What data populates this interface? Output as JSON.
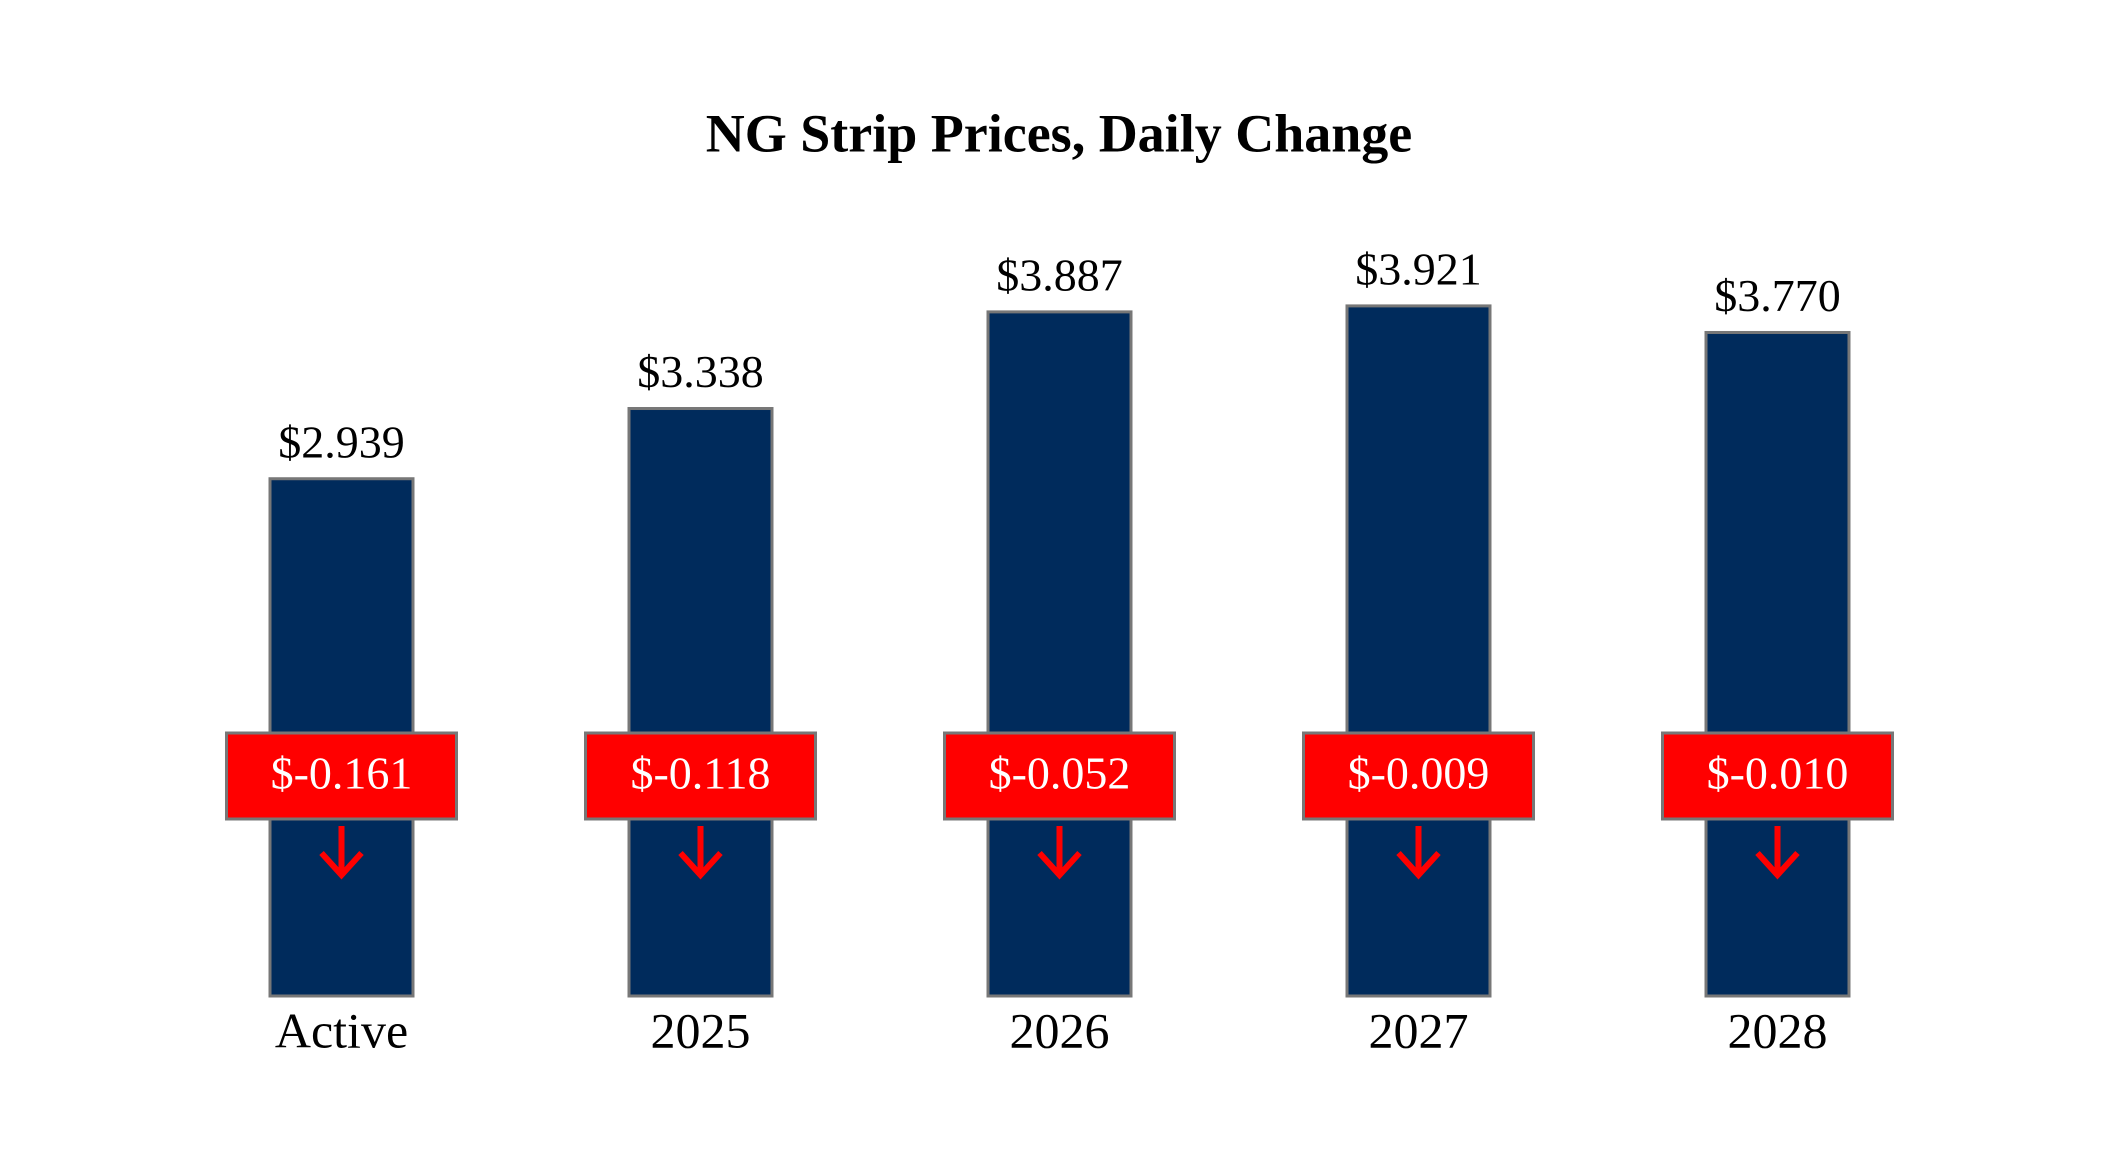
{
  "chart_data": {
    "type": "bar",
    "title": "NG Strip Prices, Daily Change",
    "categories": [
      "Active",
      "2025",
      "2026",
      "2027",
      "2028"
    ],
    "values": [
      2.939,
      3.338,
      3.887,
      3.921,
      3.77
    ],
    "value_labels": [
      "$2.939",
      "$3.338",
      "$3.887",
      "$3.921",
      "$3.770"
    ],
    "color": "#002b5c",
    "changes": {
      "values": [
        -0.161,
        -0.118,
        -0.052,
        -0.009,
        -0.01
      ],
      "value_labels": [
        "$-0.161",
        "$-0.118",
        "$-0.052",
        "$-0.009",
        "$-0.010"
      ],
      "color": "#ff0000"
    }
  }
}
